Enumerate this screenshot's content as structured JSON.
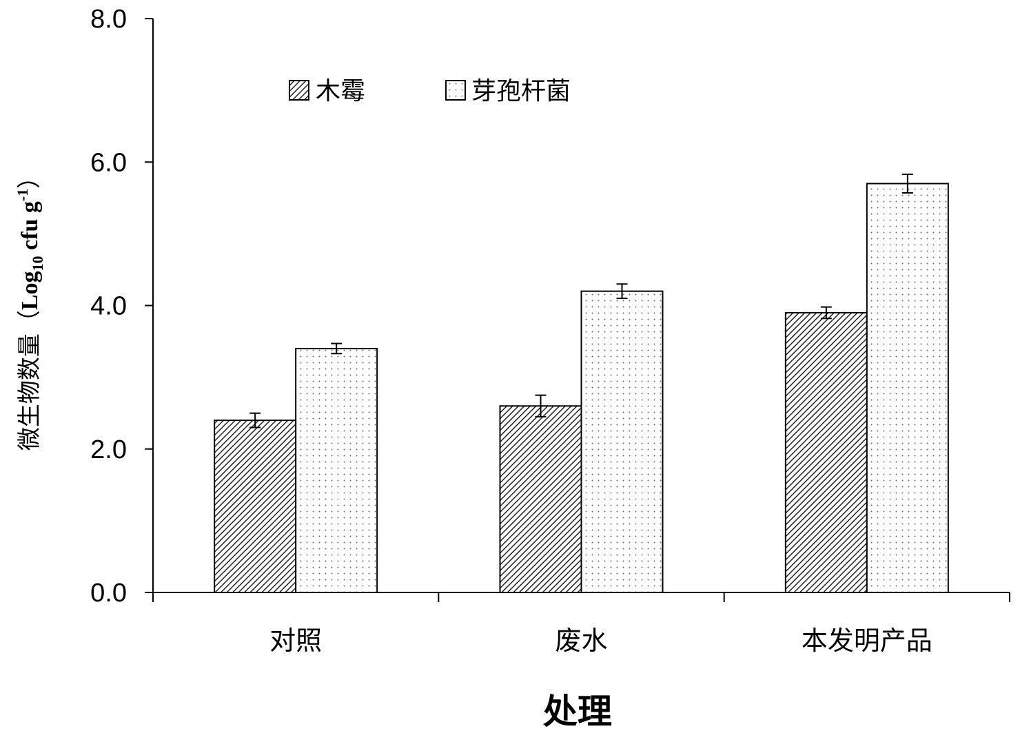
{
  "chart_data": {
    "type": "bar",
    "categories": [
      "对照",
      "废水",
      "本发明产品"
    ],
    "series": [
      {
        "name": "木霉",
        "values": [
          2.4,
          2.6,
          3.9
        ],
        "errors": [
          0.1,
          0.15,
          0.08
        ],
        "pattern": "diagonal-hatch"
      },
      {
        "name": "芽孢杆菌",
        "values": [
          3.4,
          4.2,
          5.7
        ],
        "errors": [
          0.07,
          0.1,
          0.13
        ],
        "pattern": "dots"
      }
    ],
    "xlabel": "处理",
    "ylabel": {
      "prefix": "微生物数量（",
      "log": "Log",
      "sub": "10",
      "unit": " cfu g",
      "sup": "-1",
      "suffix": "）"
    },
    "ylim": [
      0,
      8
    ],
    "yticks": [
      "0.0",
      "2.0",
      "4.0",
      "6.0",
      "8.0"
    ],
    "ytick_values": [
      0,
      2,
      4,
      6,
      8
    ],
    "grid": false,
    "legend_position": "top-left"
  }
}
